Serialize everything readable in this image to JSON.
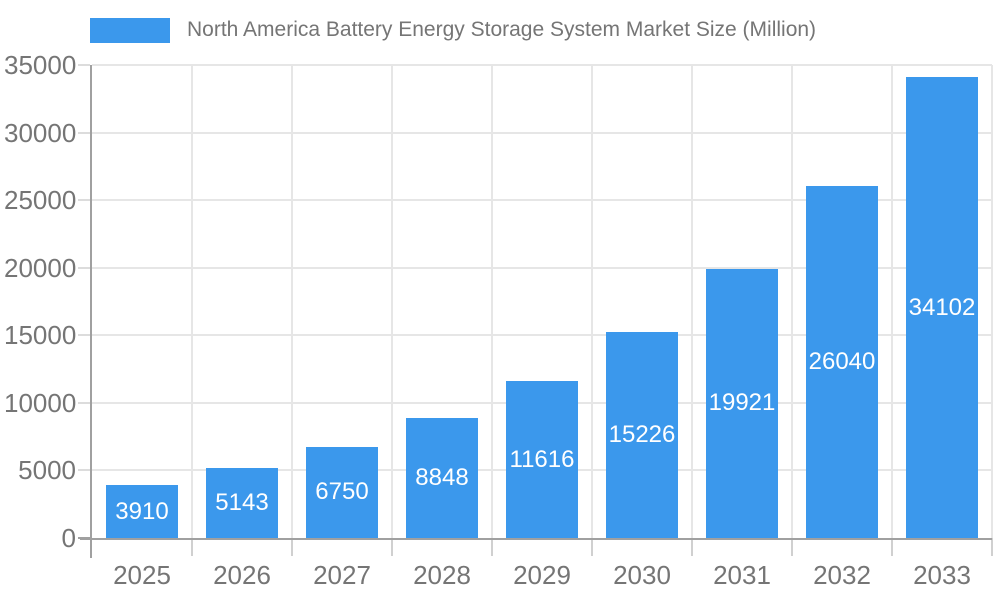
{
  "legend": {
    "label": "North America Battery Energy Storage System Market Size (Million)",
    "swatch_color": "#3B98EC"
  },
  "chart_data": {
    "type": "bar",
    "title": "North America Battery Energy Storage System Market Size (Million)",
    "categories": [
      "2025",
      "2026",
      "2027",
      "2028",
      "2029",
      "2030",
      "2031",
      "2032",
      "2033"
    ],
    "values": [
      3910,
      5143,
      6750,
      8848,
      11616,
      15226,
      19921,
      26040,
      34102
    ],
    "xlabel": "",
    "ylabel": "",
    "ylim": [
      0,
      35000
    ],
    "yticks": [
      0,
      5000,
      10000,
      15000,
      20000,
      25000,
      30000,
      35000
    ],
    "grid": true,
    "legend_position": "top-left",
    "bar_color": "#3B98EC",
    "value_label_color": "#ffffff"
  },
  "colors": {
    "background": "#ffffff",
    "axis_text": "#757575",
    "legend_text": "#757575",
    "grid_line": "#e6e6e6",
    "axis_line": "#a0a0a0",
    "y_tick": "#dcdcdc",
    "x_tick": "#d0d0d0"
  }
}
